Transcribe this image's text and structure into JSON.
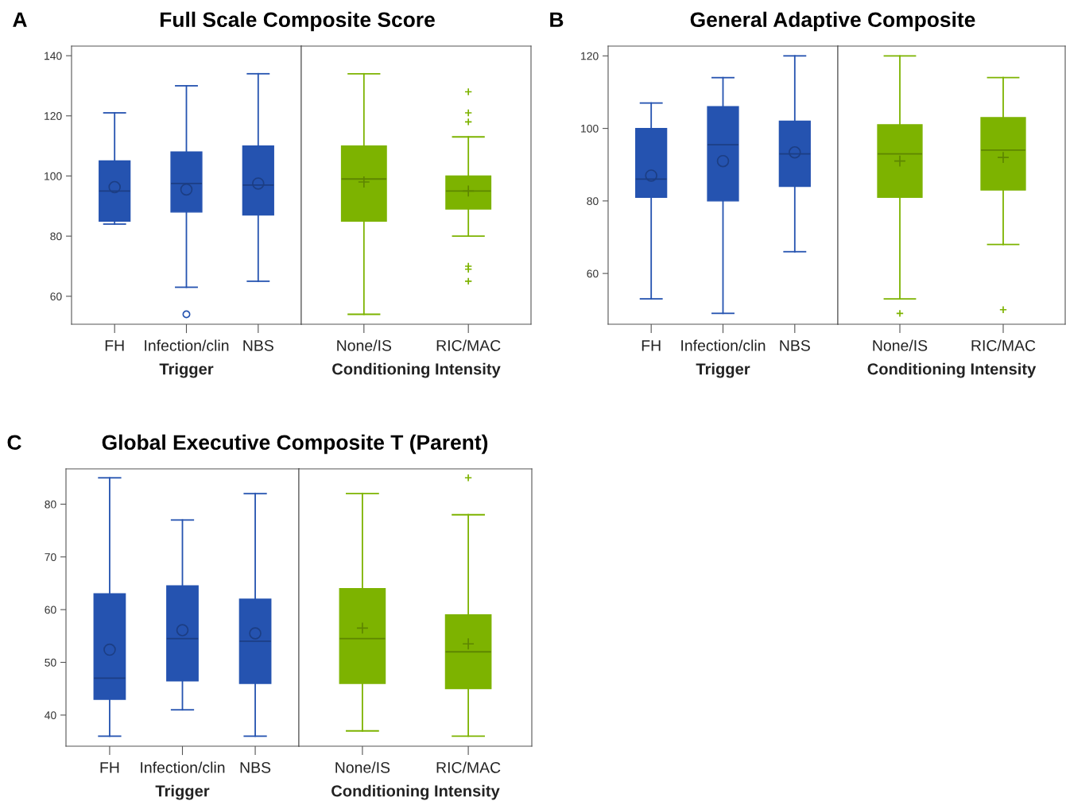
{
  "chart_data": [
    {
      "type": "box",
      "title": "Full Scale Composite Score",
      "annotations": [
        "A"
      ],
      "categories": [
        "FH",
        "Infection/clin",
        "NBS"
      ],
      "xlabel": "Trigger",
      "ylim": [
        50.7,
        143.2
      ],
      "yticks": [
        60,
        80,
        100,
        120,
        140
      ],
      "marker": "circle",
      "series": [
        {
          "color": "#2553b0",
          "boxes": [
            {
              "low": 84,
              "q1": 85,
              "median": 95,
              "q3": 105,
              "high": 121,
              "mean": 96.3
            },
            {
              "low": 63,
              "q1": 88,
              "median": 97.5,
              "q3": 108,
              "high": 130,
              "mean": 95.5,
              "outliers": [
                54
              ]
            },
            {
              "low": 65,
              "q1": 87,
              "median": 97,
              "q3": 110,
              "high": 134,
              "mean": 97.5
            }
          ]
        }
      ]
    },
    {
      "type": "box",
      "categories": [
        "None/IS",
        "RIC/MAC"
      ],
      "xlabel": "Conditioning Intensity",
      "ylim": [
        50.7,
        143.2
      ],
      "tick_labels": "x",
      "marker": "cross",
      "series": [
        {
          "color": "#7db300",
          "boxes": [
            {
              "low": 54,
              "q1": 85,
              "median": 99,
              "q3": 110,
              "high": 134,
              "mean": 98
            },
            {
              "low": 80,
              "q1": 89,
              "median": 95,
              "q3": 100,
              "high": 113,
              "mean": 95,
              "outliers": [
                128,
                121,
                118,
                70,
                69,
                65
              ]
            }
          ]
        }
      ]
    },
    {
      "type": "box",
      "title": "General Adaptive Composite",
      "annotations": [
        "B"
      ],
      "categories": [
        "FH",
        "Infection/clin",
        "NBS"
      ],
      "xlabel": "Trigger",
      "ylim": [
        46,
        122.7
      ],
      "yticks": [
        60,
        80,
        100,
        120
      ],
      "marker": "circle",
      "series": [
        {
          "color": "#2553b0",
          "boxes": [
            {
              "low": 53,
              "q1": 81,
              "median": 86,
              "q3": 100,
              "high": 107,
              "mean": 87
            },
            {
              "low": 49,
              "q1": 80,
              "median": 95.5,
              "q3": 106,
              "high": 114,
              "mean": 91
            },
            {
              "low": 66,
              "q1": 84,
              "median": 93,
              "q3": 102,
              "high": 120,
              "mean": 93.4
            }
          ]
        }
      ]
    },
    {
      "type": "box",
      "categories": [
        "None/IS",
        "RIC/MAC"
      ],
      "xlabel": "Conditioning Intensity",
      "ylim": [
        46,
        122.7
      ],
      "tick_labels": "x",
      "marker": "cross",
      "series": [
        {
          "color": "#7db300",
          "boxes": [
            {
              "low": 53,
              "q1": 81,
              "median": 93,
              "q3": 101,
              "high": 120,
              "mean": 91,
              "outliers": [
                49
              ]
            },
            {
              "low": 68,
              "q1": 83,
              "median": 94,
              "q3": 103,
              "high": 114,
              "mean": 92,
              "outliers": [
                50
              ]
            }
          ]
        }
      ]
    },
    {
      "type": "box",
      "title": "Global Executive Composite T (Parent)",
      "annotations": [
        "C"
      ],
      "categories": [
        "FH",
        "Infection/clin",
        "NBS"
      ],
      "xlabel": "Trigger",
      "ylim": [
        34.1,
        86.7
      ],
      "yticks": [
        40,
        50,
        60,
        70,
        80
      ],
      "marker": "circle",
      "series": [
        {
          "color": "#2553b0",
          "boxes": [
            {
              "low": 36,
              "q1": 43,
              "median": 47,
              "q3": 63,
              "high": 85,
              "mean": 52.4
            },
            {
              "low": 41,
              "q1": 46.5,
              "median": 54.5,
              "q3": 64.5,
              "high": 77,
              "mean": 56.1
            },
            {
              "low": 36,
              "q1": 46,
              "median": 54,
              "q3": 62,
              "high": 82,
              "mean": 55.5
            }
          ]
        }
      ]
    },
    {
      "type": "box",
      "categories": [
        "None/IS",
        "RIC/MAC"
      ],
      "xlabel": "Conditioning Intensity",
      "ylim": [
        34.1,
        86.7
      ],
      "tick_labels": "x",
      "marker": "cross",
      "series": [
        {
          "color": "#7db300",
          "boxes": [
            {
              "low": 37,
              "q1": 46,
              "median": 54.5,
              "q3": 64,
              "high": 82,
              "mean": 56.5
            },
            {
              "low": 36,
              "q1": 45,
              "median": 52,
              "q3": 59,
              "high": 78,
              "mean": 53.5,
              "outliers": [
                85
              ]
            }
          ]
        }
      ]
    }
  ]
}
